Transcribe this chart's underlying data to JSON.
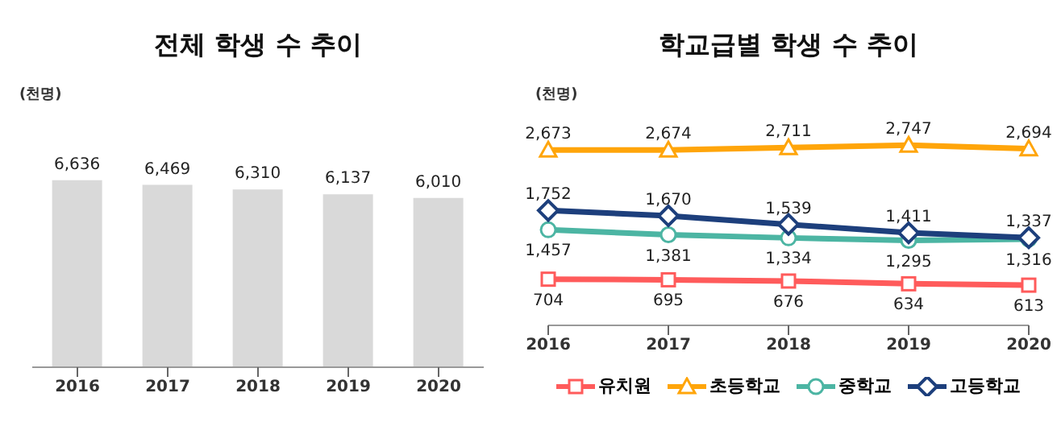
{
  "chart_data": [
    {
      "type": "bar",
      "title": "전체 학생 수 추이",
      "ylabel": "(천명)",
      "categories": [
        "2016",
        "2017",
        "2018",
        "2019",
        "2020"
      ],
      "values": [
        6636,
        6469,
        6310,
        6137,
        6010
      ],
      "value_labels": [
        "6,636",
        "6,469",
        "6,310",
        "6,137",
        "6,010"
      ],
      "color": "#d9d9d9",
      "tick_labels": "x",
      "legend": false
    },
    {
      "type": "line",
      "title": "학교급별 학생 수 추이",
      "ylabel": "(천명)",
      "categories": [
        "2016",
        "2017",
        "2018",
        "2019",
        "2020"
      ],
      "series": [
        {
          "name": "유치원",
          "color": "#ff5b5b",
          "marker": "square",
          "values": [
            704,
            695,
            676,
            634,
            613
          ],
          "value_labels": [
            "704",
            "695",
            "676",
            "634",
            "613"
          ]
        },
        {
          "name": "초등학교",
          "color": "#ffa50a",
          "marker": "triangle",
          "values": [
            2673,
            2674,
            2711,
            2747,
            2694
          ],
          "value_labels": [
            "2,673",
            "2,674",
            "2,711",
            "2,747",
            "2,694"
          ]
        },
        {
          "name": "중학교",
          "color": "#4cb5a3",
          "marker": "circle",
          "values": [
            1457,
            1381,
            1334,
            1295,
            1316
          ],
          "value_labels": [
            "1,457",
            "1,381",
            "1,334",
            "1,295",
            "1,316"
          ]
        },
        {
          "name": "고등학교",
          "color": "#1d3f7c",
          "marker": "diamond",
          "values": [
            1752,
            1670,
            1539,
            1411,
            1337
          ],
          "value_labels": [
            "1,752",
            "1,670",
            "1,539",
            "1,411",
            "1,337"
          ]
        }
      ],
      "tick_labels": "x",
      "legend": "bottom",
      "line_style": "solid"
    }
  ]
}
